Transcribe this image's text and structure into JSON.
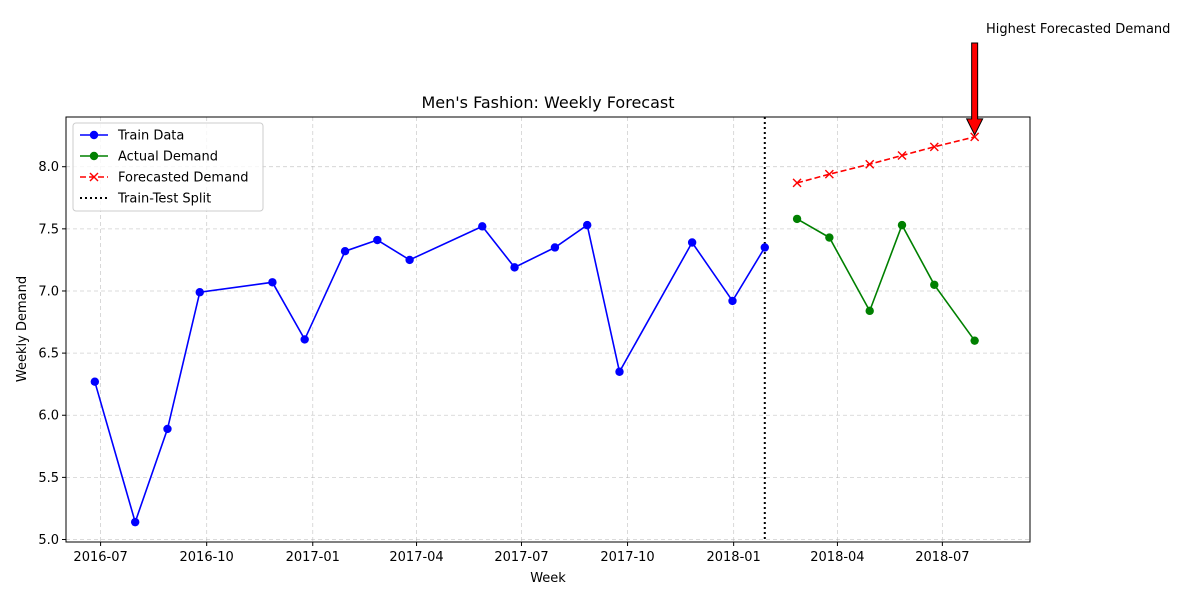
{
  "chart_data": {
    "type": "line",
    "title": "Men's Fashion: Weekly Forecast",
    "xlabel": "Week",
    "ylabel": "Weekly Demand",
    "xlim": [
      "2016-06-01",
      "2018-09-15"
    ],
    "ylim": [
      4.98,
      8.4
    ],
    "grid": true,
    "legend_position": "top-left",
    "x_ticks": [
      "2016-07",
      "2016-10",
      "2017-01",
      "2017-04",
      "2017-07",
      "2017-10",
      "2018-01",
      "2018-04",
      "2018-07"
    ],
    "x_tick_dates": [
      "2016-07-01",
      "2016-10-01",
      "2017-01-01",
      "2017-04-01",
      "2017-07-01",
      "2017-10-01",
      "2018-01-01",
      "2018-04-01",
      "2018-07-01"
    ],
    "y_ticks": [
      "5.0",
      "5.5",
      "6.0",
      "6.5",
      "7.0",
      "7.5",
      "8.0"
    ],
    "y_tick_values": [
      5.0,
      5.5,
      6.0,
      6.5,
      7.0,
      7.5,
      8.0
    ],
    "series": [
      {
        "name": "Train Data",
        "color": "#0000ff",
        "style": "solid",
        "marker": "circle",
        "x": [
          "2016-06-26",
          "2016-07-31",
          "2016-08-28",
          "2016-09-25",
          "2016-11-27",
          "2016-12-25",
          "2017-01-29",
          "2017-02-26",
          "2017-03-26",
          "2017-05-28",
          "2017-06-25",
          "2017-07-30",
          "2017-08-27",
          "2017-09-24",
          "2017-11-26",
          "2017-12-31",
          "2018-01-28"
        ],
        "y": [
          6.27,
          5.14,
          5.89,
          6.99,
          7.07,
          6.61,
          7.32,
          7.41,
          7.25,
          7.52,
          7.19,
          7.35,
          7.53,
          6.35,
          7.39,
          6.92,
          7.35
        ]
      },
      {
        "name": "Actual Demand",
        "color": "#008000",
        "style": "solid",
        "marker": "circle",
        "x": [
          "2018-02-25",
          "2018-03-25",
          "2018-04-29",
          "2018-05-27",
          "2018-06-24",
          "2018-07-29"
        ],
        "y": [
          7.58,
          7.43,
          6.84,
          7.53,
          7.05,
          6.6
        ]
      },
      {
        "name": "Forecasted Demand",
        "color": "#ff0000",
        "style": "dashed",
        "marker": "x",
        "x": [
          "2018-02-25",
          "2018-03-25",
          "2018-04-29",
          "2018-05-27",
          "2018-06-24",
          "2018-07-29"
        ],
        "y": [
          7.87,
          7.94,
          8.02,
          8.09,
          8.16,
          8.24
        ]
      }
    ],
    "split_line": {
      "name": "Train-Test Split",
      "x": "2018-01-28",
      "color": "#000000",
      "style": "dotted"
    },
    "annotation": {
      "text": "Highest Forecasted Demand",
      "x": "2018-07-29",
      "y": 8.24,
      "arrow_color": "#ff0000"
    }
  }
}
